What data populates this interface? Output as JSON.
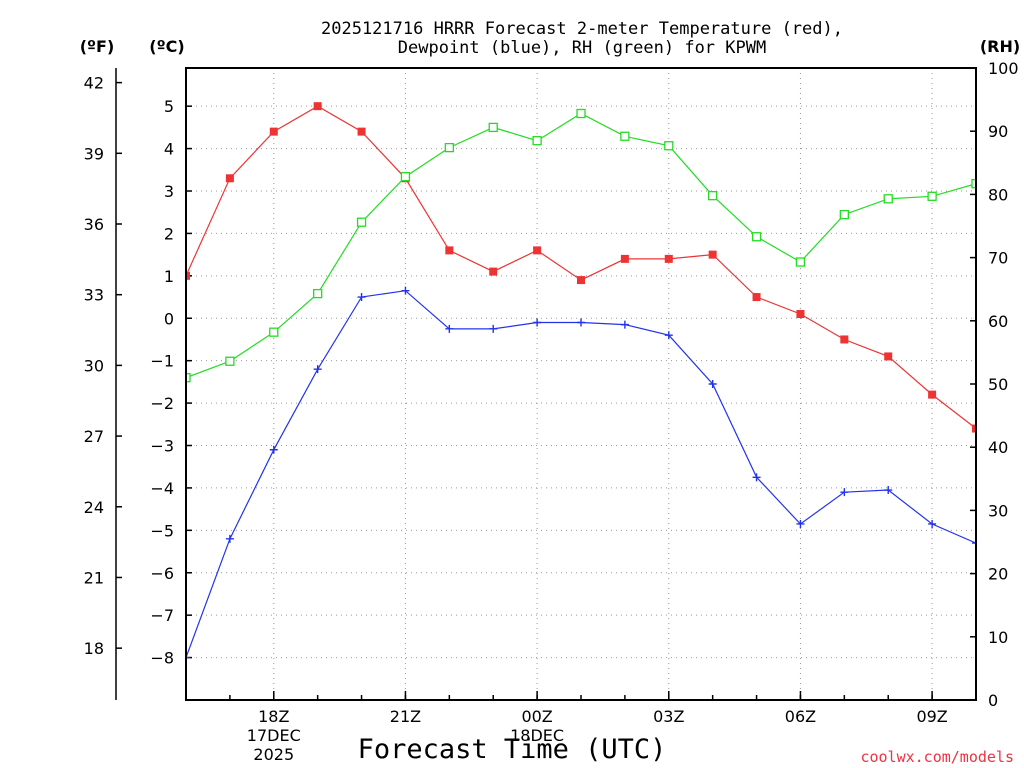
{
  "chart_data": {
    "type": "line",
    "title_line1": "2025121716 HRRR Forecast 2-meter Temperature (red),",
    "title_line2": "Dewpoint (blue), RH (green) for KPWM",
    "xlabel": "Forecast Time (UTC)",
    "watermark": "coolwx.com/models",
    "unit_f": "(ºF)",
    "unit_c": "(ºC)",
    "unit_rh": "(RH)",
    "x_hours": [
      16,
      17,
      18,
      19,
      20,
      21,
      22,
      23,
      24,
      25,
      26,
      27,
      28,
      29,
      30,
      31,
      32,
      33,
      34
    ],
    "x_ticks": [
      {
        "hour": 18,
        "label": "18Z",
        "sub1": "17DEC",
        "sub2": "2025"
      },
      {
        "hour": 21,
        "label": "21Z",
        "sub1": "",
        "sub2": ""
      },
      {
        "hour": 24,
        "label": "00Z",
        "sub1": "18DEC",
        "sub2": ""
      },
      {
        "hour": 27,
        "label": "03Z",
        "sub1": "",
        "sub2": ""
      },
      {
        "hour": 30,
        "label": "06Z",
        "sub1": "",
        "sub2": ""
      },
      {
        "hour": 33,
        "label": "09Z",
        "sub1": "",
        "sub2": ""
      }
    ],
    "c_range": [
      -9,
      5.9
    ],
    "c_ticks": [
      "-8",
      "-7",
      "-6",
      "-5",
      "-4",
      "-3",
      "-2",
      "-1",
      "0",
      "1",
      "2",
      "3",
      "4",
      "5"
    ],
    "f_ticks": [
      "18",
      "21",
      "24",
      "27",
      "30",
      "33",
      "36",
      "39",
      "42"
    ],
    "rh_range": [
      0,
      100
    ],
    "rh_ticks": [
      "0",
      "10",
      "20",
      "30",
      "40",
      "50",
      "60",
      "70",
      "80",
      "90",
      "100"
    ],
    "series": [
      {
        "name": "Temperature",
        "axis": "C",
        "color": "#ee3333",
        "marker": "filled-square",
        "values": [
          1.0,
          3.3,
          4.4,
          5.0,
          4.4,
          3.3,
          1.6,
          1.1,
          1.6,
          0.9,
          1.4,
          1.4,
          1.5,
          0.5,
          0.1,
          -0.5,
          -0.9,
          -1.8,
          -2.6
        ]
      },
      {
        "name": "Dewpoint",
        "axis": "C",
        "color": "#2233ee",
        "marker": "plus",
        "values": [
          -8.0,
          -5.2,
          -3.1,
          -1.2,
          0.5,
          0.65,
          -0.25,
          -0.25,
          -0.1,
          -0.1,
          -0.15,
          -0.4,
          -1.55,
          -3.75,
          -4.85,
          -4.1,
          -4.05,
          -4.85,
          -5.3
        ]
      },
      {
        "name": "RH",
        "axis": "RH",
        "color": "#22dd22",
        "marker": "open-square",
        "values": [
          51,
          53.6,
          58.2,
          64.3,
          75.6,
          82.8,
          87.4,
          90.6,
          88.5,
          92.8,
          89.2,
          87.7,
          79.8,
          73.3,
          69.3,
          76.8,
          79.3,
          79.7,
          81.7
        ]
      }
    ]
  }
}
